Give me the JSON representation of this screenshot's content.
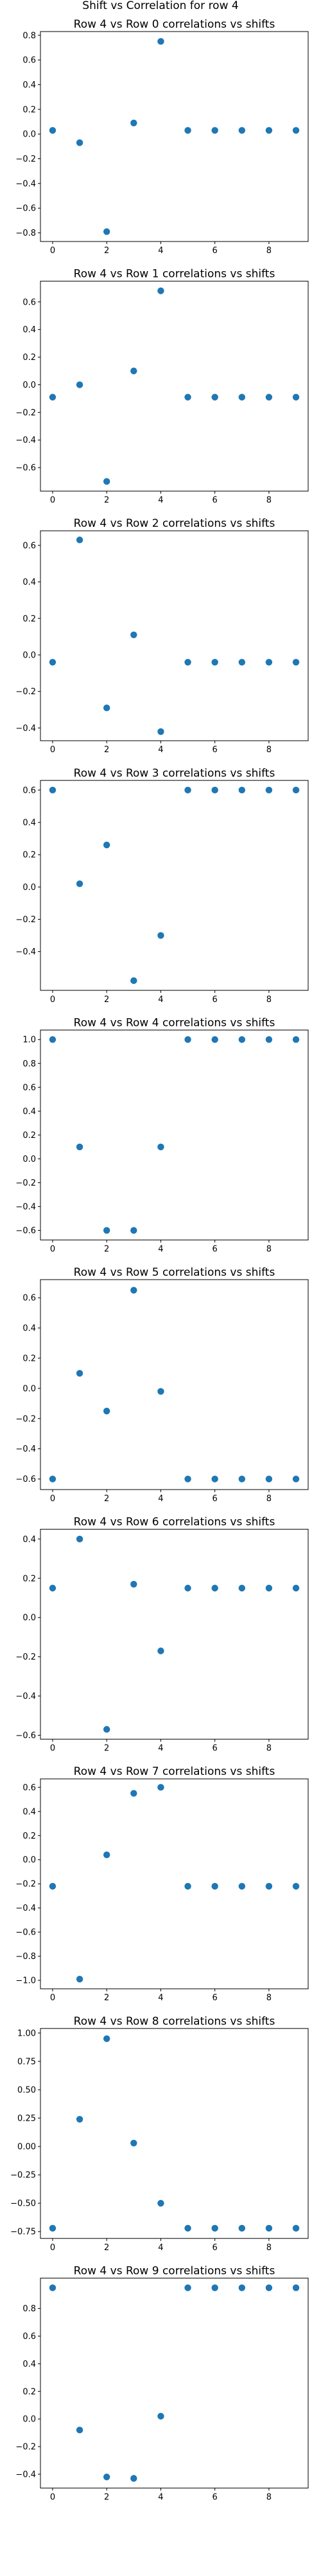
{
  "suptitle": "Shift vs Correlation for row 4",
  "marker_color": "#1f77b4",
  "chart_data": [
    {
      "type": "scatter",
      "title": "Row 4 vs Row 0 correlations vs shifts",
      "x": [
        0,
        1,
        2,
        3,
        4,
        5,
        6,
        7,
        8,
        9
      ],
      "y": [
        0.03,
        -0.07,
        -0.79,
        0.09,
        0.75,
        0.03,
        0.03,
        0.03,
        0.03,
        0.03
      ],
      "xticks": [
        0,
        2,
        4,
        6,
        8
      ],
      "yticks": [
        -0.8,
        -0.6,
        -0.4,
        -0.2,
        0.0,
        0.2,
        0.4,
        0.6,
        0.8
      ],
      "ytick_labels": [
        "−0.8",
        "−0.6",
        "−0.4",
        "−0.2",
        "0.0",
        "0.2",
        "0.4",
        "0.6",
        "0.8"
      ],
      "ylim": [
        -0.87,
        0.83
      ],
      "xlim": [
        -0.45,
        9.45
      ]
    },
    {
      "type": "scatter",
      "title": "Row 4 vs Row 1 correlations vs shifts",
      "x": [
        0,
        1,
        2,
        3,
        4,
        5,
        6,
        7,
        8,
        9
      ],
      "y": [
        -0.09,
        0.0,
        -0.7,
        0.1,
        0.68,
        -0.09,
        -0.09,
        -0.09,
        -0.09,
        -0.09
      ],
      "xticks": [
        0,
        2,
        4,
        6,
        8
      ],
      "yticks": [
        -0.6,
        -0.4,
        -0.2,
        0.0,
        0.2,
        0.4,
        0.6
      ],
      "ytick_labels": [
        "−0.6",
        "−0.4",
        "−0.2",
        "0.0",
        "0.2",
        "0.4",
        "0.6"
      ],
      "ylim": [
        -0.77,
        0.75
      ],
      "xlim": [
        -0.45,
        9.45
      ]
    },
    {
      "type": "scatter",
      "title": "Row 4 vs Row 2 correlations vs shifts",
      "x": [
        0,
        1,
        2,
        3,
        4,
        5,
        6,
        7,
        8,
        9
      ],
      "y": [
        -0.04,
        0.63,
        -0.29,
        0.11,
        -0.42,
        -0.04,
        -0.04,
        -0.04,
        -0.04,
        -0.04
      ],
      "xticks": [
        0,
        2,
        4,
        6,
        8
      ],
      "yticks": [
        -0.4,
        -0.2,
        0.0,
        0.2,
        0.4,
        0.6
      ],
      "ytick_labels": [
        "−0.4",
        "−0.2",
        "0.0",
        "0.2",
        "0.4",
        "0.6"
      ],
      "ylim": [
        -0.47,
        0.68
      ],
      "xlim": [
        -0.45,
        9.45
      ]
    },
    {
      "type": "scatter",
      "title": "Row 4 vs Row 3 correlations vs shifts",
      "x": [
        0,
        1,
        2,
        3,
        4,
        5,
        6,
        7,
        8,
        9
      ],
      "y": [
        0.6,
        0.02,
        0.26,
        -0.58,
        -0.3,
        0.6,
        0.6,
        0.6,
        0.6,
        0.6
      ],
      "xticks": [
        0,
        2,
        4,
        6,
        8
      ],
      "yticks": [
        -0.4,
        -0.2,
        0.0,
        0.2,
        0.4,
        0.6
      ],
      "ytick_labels": [
        "−0.4",
        "−0.2",
        "0.0",
        "0.2",
        "0.4",
        "0.6"
      ],
      "ylim": [
        -0.64,
        0.66
      ],
      "xlim": [
        -0.45,
        9.45
      ]
    },
    {
      "type": "scatter",
      "title": "Row 4 vs Row 4 correlations vs shifts",
      "x": [
        0,
        1,
        2,
        3,
        4,
        5,
        6,
        7,
        8,
        9
      ],
      "y": [
        1.0,
        0.1,
        -0.6,
        -0.6,
        0.1,
        1.0,
        1.0,
        1.0,
        1.0,
        1.0
      ],
      "xticks": [
        0,
        2,
        4,
        6,
        8
      ],
      "yticks": [
        -0.6,
        -0.4,
        -0.2,
        0.0,
        0.2,
        0.4,
        0.6,
        0.8,
        1.0
      ],
      "ytick_labels": [
        "−0.6",
        "−0.4",
        "−0.2",
        "0.0",
        "0.2",
        "0.4",
        "0.6",
        "0.8",
        "1.0"
      ],
      "ylim": [
        -0.68,
        1.08
      ],
      "xlim": [
        -0.45,
        9.45
      ]
    },
    {
      "type": "scatter",
      "title": "Row 4 vs Row 5 correlations vs shifts",
      "x": [
        0,
        1,
        2,
        3,
        4,
        5,
        6,
        7,
        8,
        9
      ],
      "y": [
        -0.6,
        0.1,
        -0.15,
        0.65,
        -0.02,
        -0.6,
        -0.6,
        -0.6,
        -0.6,
        -0.6
      ],
      "xticks": [
        0,
        2,
        4,
        6,
        8
      ],
      "yticks": [
        -0.6,
        -0.4,
        -0.2,
        0.0,
        0.2,
        0.4,
        0.6
      ],
      "ytick_labels": [
        "−0.6",
        "−0.4",
        "−0.2",
        "0.0",
        "0.2",
        "0.4",
        "0.6"
      ],
      "ylim": [
        -0.67,
        0.72
      ],
      "xlim": [
        -0.45,
        9.45
      ]
    },
    {
      "type": "scatter",
      "title": "Row 4 vs Row 6 correlations vs shifts",
      "x": [
        0,
        1,
        2,
        3,
        4,
        5,
        6,
        7,
        8,
        9
      ],
      "y": [
        0.15,
        0.4,
        -0.57,
        0.17,
        -0.17,
        0.15,
        0.15,
        0.15,
        0.15,
        0.15
      ],
      "xticks": [
        0,
        2,
        4,
        6,
        8
      ],
      "yticks": [
        -0.6,
        -0.4,
        -0.2,
        0.0,
        0.2,
        0.4
      ],
      "ytick_labels": [
        "−0.6",
        "−0.4",
        "−0.2",
        "0.0",
        "0.2",
        "0.4"
      ],
      "ylim": [
        -0.62,
        0.45
      ],
      "xlim": [
        -0.45,
        9.45
      ]
    },
    {
      "type": "scatter",
      "title": "Row 4 vs Row 7 correlations vs shifts",
      "x": [
        0,
        1,
        2,
        3,
        4,
        5,
        6,
        7,
        8,
        9
      ],
      "y": [
        -0.22,
        -0.99,
        0.04,
        0.55,
        0.6,
        -0.22,
        -0.22,
        -0.22,
        -0.22,
        -0.22
      ],
      "xticks": [
        0,
        2,
        4,
        6,
        8
      ],
      "yticks": [
        -1.0,
        -0.8,
        -0.6,
        -0.4,
        -0.2,
        0.0,
        0.2,
        0.4,
        0.6
      ],
      "ytick_labels": [
        "−1.0",
        "−0.8",
        "−0.6",
        "−0.4",
        "−0.2",
        "0.0",
        "0.2",
        "0.4",
        "0.6"
      ],
      "ylim": [
        -1.07,
        0.67
      ],
      "xlim": [
        -0.45,
        9.45
      ]
    },
    {
      "type": "scatter",
      "title": "Row 4 vs Row 8 correlations vs shifts",
      "x": [
        0,
        1,
        2,
        3,
        4,
        5,
        6,
        7,
        8,
        9
      ],
      "y": [
        -0.72,
        0.24,
        0.95,
        0.03,
        -0.5,
        -0.72,
        -0.72,
        -0.72,
        -0.72,
        -0.72
      ],
      "xticks": [
        0,
        2,
        4,
        6,
        8
      ],
      "yticks": [
        -0.75,
        -0.5,
        -0.25,
        0.0,
        0.25,
        0.5,
        0.75,
        1.0
      ],
      "ytick_labels": [
        "−0.75",
        "−0.50",
        "−0.25",
        "0.00",
        "0.25",
        "0.50",
        "0.75",
        "1.00"
      ],
      "ylim": [
        -0.81,
        1.04
      ],
      "xlim": [
        -0.45,
        9.45
      ]
    },
    {
      "type": "scatter",
      "title": "Row 4 vs Row 9 correlations vs shifts",
      "x": [
        0,
        1,
        2,
        3,
        4,
        5,
        6,
        7,
        8,
        9
      ],
      "y": [
        0.95,
        -0.08,
        -0.42,
        -0.43,
        0.02,
        0.95,
        0.95,
        0.95,
        0.95,
        0.95
      ],
      "xticks": [
        0,
        2,
        4,
        6,
        8
      ],
      "yticks": [
        -0.4,
        -0.2,
        0.0,
        0.2,
        0.4,
        0.6,
        0.8
      ],
      "ytick_labels": [
        "−0.4",
        "−0.2",
        "0.0",
        "0.2",
        "0.4",
        "0.6",
        "0.8"
      ],
      "ylim": [
        -0.5,
        1.02
      ],
      "xlim": [
        -0.45,
        9.45
      ]
    }
  ]
}
